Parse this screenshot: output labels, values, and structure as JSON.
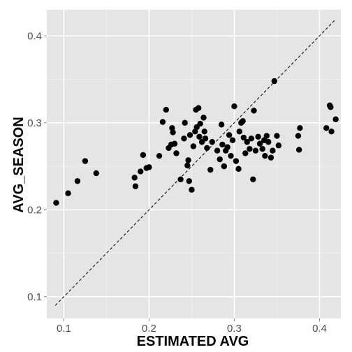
{
  "chart_data": {
    "type": "scatter",
    "xlabel": "ESTIMATED AVG",
    "ylabel": "AVG_SEASON",
    "xlim": [
      0.08,
      0.425
    ],
    "ylim": [
      0.075,
      0.43
    ],
    "x_ticks": [
      0.1,
      0.2,
      0.3,
      0.4
    ],
    "y_ticks": [
      0.1,
      0.2,
      0.3,
      0.4
    ],
    "x_tick_labels": [
      "0.1",
      "0.2",
      "0.3",
      "0.4"
    ],
    "y_tick_labels": [
      "0.1",
      "0.2",
      "0.3",
      "0.4"
    ],
    "grid": true,
    "panel_color": "#e5e5e5",
    "point_color": "#000000",
    "reference_line": {
      "style": "dashed",
      "x": [
        0.09,
        0.418
      ],
      "y": [
        0.09,
        0.418
      ]
    },
    "points": [
      [
        0.091,
        0.208
      ],
      [
        0.105,
        0.219
      ],
      [
        0.116,
        0.233
      ],
      [
        0.125,
        0.256
      ],
      [
        0.138,
        0.242
      ],
      [
        0.183,
        0.237
      ],
      [
        0.184,
        0.227
      ],
      [
        0.19,
        0.244
      ],
      [
        0.193,
        0.263
      ],
      [
        0.197,
        0.248
      ],
      [
        0.2,
        0.249
      ],
      [
        0.212,
        0.262
      ],
      [
        0.216,
        0.301
      ],
      [
        0.22,
        0.315
      ],
      [
        0.223,
        0.271
      ],
      [
        0.226,
        0.275
      ],
      [
        0.227,
        0.294
      ],
      [
        0.228,
        0.289
      ],
      [
        0.23,
        0.276
      ],
      [
        0.232,
        0.265
      ],
      [
        0.237,
        0.235
      ],
      [
        0.241,
        0.282
      ],
      [
        0.242,
        0.3
      ],
      [
        0.245,
        0.251
      ],
      [
        0.246,
        0.257
      ],
      [
        0.247,
        0.233
      ],
      [
        0.248,
        0.286
      ],
      [
        0.25,
        0.223
      ],
      [
        0.252,
        0.273
      ],
      [
        0.254,
        0.29
      ],
      [
        0.255,
        0.315
      ],
      [
        0.256,
        0.295
      ],
      [
        0.258,
        0.317
      ],
      [
        0.259,
        0.284
      ],
      [
        0.26,
        0.299
      ],
      [
        0.262,
        0.278
      ],
      [
        0.264,
        0.306
      ],
      [
        0.265,
        0.29
      ],
      [
        0.266,
        0.282
      ],
      [
        0.268,
        0.271
      ],
      [
        0.272,
        0.246
      ],
      [
        0.274,
        0.278
      ],
      [
        0.28,
        0.268
      ],
      [
        0.283,
        0.258
      ],
      [
        0.285,
        0.298
      ],
      [
        0.286,
        0.275
      ],
      [
        0.288,
        0.25
      ],
      [
        0.29,
        0.268
      ],
      [
        0.292,
        0.272
      ],
      [
        0.294,
        0.286
      ],
      [
        0.296,
        0.262
      ],
      [
        0.298,
        0.28
      ],
      [
        0.3,
        0.319
      ],
      [
        0.302,
        0.256
      ],
      [
        0.305,
        0.247
      ],
      [
        0.306,
        0.29
      ],
      [
        0.308,
        0.3
      ],
      [
        0.31,
        0.302
      ],
      [
        0.311,
        0.283
      ],
      [
        0.313,
        0.265
      ],
      [
        0.315,
        0.278
      ],
      [
        0.318,
        0.27
      ],
      [
        0.32,
        0.282
      ],
      [
        0.322,
        0.235
      ],
      [
        0.323,
        0.314
      ],
      [
        0.325,
        0.268
      ],
      [
        0.328,
        0.284
      ],
      [
        0.33,
        0.276
      ],
      [
        0.333,
        0.27
      ],
      [
        0.335,
        0.28
      ],
      [
        0.336,
        0.262
      ],
      [
        0.338,
        0.285
      ],
      [
        0.34,
        0.278
      ],
      [
        0.343,
        0.26
      ],
      [
        0.345,
        0.268
      ],
      [
        0.347,
        0.348
      ],
      [
        0.35,
        0.285
      ],
      [
        0.352,
        0.274
      ],
      [
        0.375,
        0.285
      ],
      [
        0.376,
        0.269
      ],
      [
        0.377,
        0.294
      ],
      [
        0.408,
        0.294
      ],
      [
        0.412,
        0.32
      ],
      [
        0.413,
        0.318
      ],
      [
        0.414,
        0.29
      ],
      [
        0.419,
        0.304
      ]
    ]
  }
}
